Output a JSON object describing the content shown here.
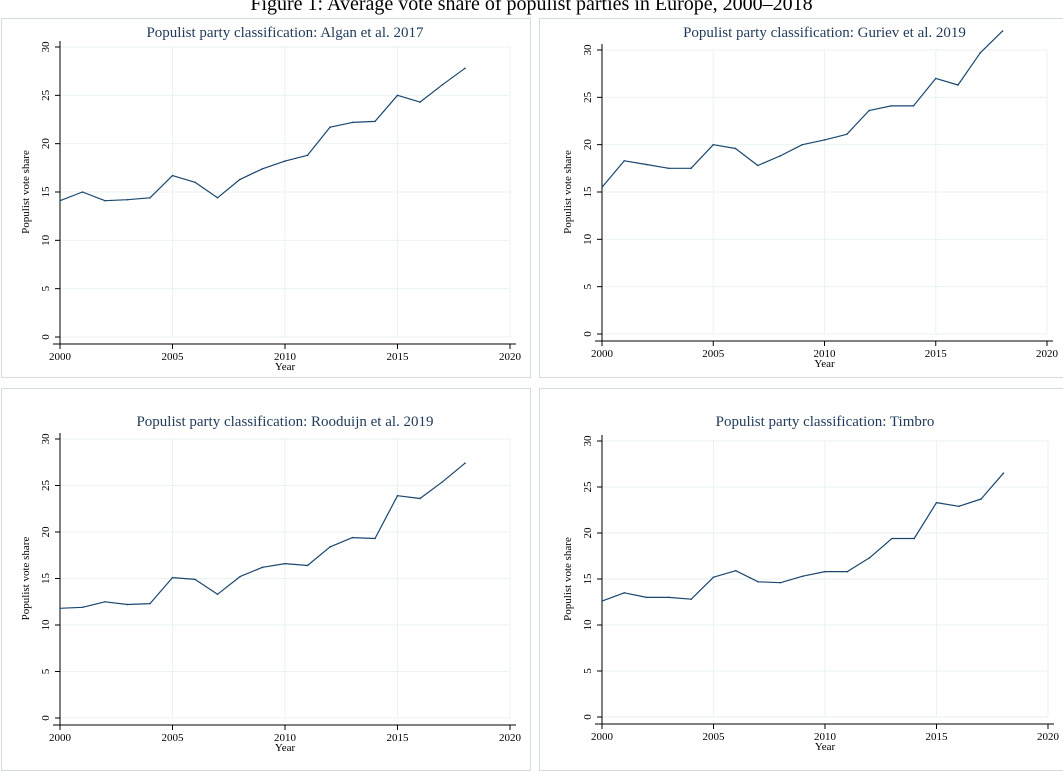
{
  "page_title": "Figure 1: Average vote share of populist parties in Europe, 2000–2018",
  "chart_data": [
    {
      "type": "line",
      "title": "Populist party classification: Algan et al. 2017",
      "xlabel": "Year",
      "ylabel": "Populist vote share",
      "xlim": [
        2000,
        2020
      ],
      "ylim": [
        0,
        30
      ],
      "xticks": [
        "2000",
        "2005",
        "2010",
        "2015",
        "2020"
      ],
      "yticks": [
        "0",
        "5",
        "10",
        "15",
        "20",
        "25",
        "30"
      ],
      "grid": true,
      "x": [
        2000,
        2001,
        2002,
        2003,
        2004,
        2005,
        2006,
        2007,
        2008,
        2009,
        2010,
        2011,
        2012,
        2013,
        2014,
        2015,
        2016,
        2017,
        2018
      ],
      "series": [
        {
          "values": [
            14.1,
            15.0,
            14.1,
            14.2,
            14.4,
            16.7,
            16.0,
            14.4,
            16.3,
            17.4,
            18.2,
            18.8,
            21.7,
            22.2,
            22.3,
            25.0,
            24.3,
            26.1,
            27.8
          ]
        }
      ],
      "line_color": "#1a476f"
    },
    {
      "type": "line",
      "title": "Populist party classification: Guriev et al. 2019",
      "xlabel": "Year",
      "ylabel": "Populist vote share",
      "xlim": [
        2000,
        2020
      ],
      "ylim": [
        0,
        30
      ],
      "xticks": [
        "2000",
        "2005",
        "2010",
        "2015",
        "2020"
      ],
      "yticks": [
        "0",
        "5",
        "10",
        "15",
        "20",
        "25",
        "30"
      ],
      "grid": true,
      "x": [
        2000,
        2001,
        2002,
        2003,
        2004,
        2005,
        2006,
        2007,
        2008,
        2009,
        2010,
        2011,
        2012,
        2013,
        2014,
        2015,
        2016,
        2017,
        2018
      ],
      "series": [
        {
          "values": [
            15.5,
            18.3,
            17.9,
            17.5,
            17.5,
            20.0,
            19.6,
            17.8,
            18.8,
            20.0,
            20.5,
            21.1,
            23.6,
            24.1,
            24.1,
            27.0,
            26.3,
            29.7,
            32.0
          ]
        }
      ],
      "line_color": "#1a476f"
    },
    {
      "type": "line",
      "title": "Populist party classification: Rooduijn et al. 2019",
      "xlabel": "Year",
      "ylabel": "Populist vote share",
      "xlim": [
        2000,
        2020
      ],
      "ylim": [
        0,
        30
      ],
      "xticks": [
        "2000",
        "2005",
        "2010",
        "2015",
        "2020"
      ],
      "yticks": [
        "0",
        "5",
        "10",
        "15",
        "20",
        "25",
        "30"
      ],
      "grid": true,
      "x": [
        2000,
        2001,
        2002,
        2003,
        2004,
        2005,
        2006,
        2007,
        2008,
        2009,
        2010,
        2011,
        2012,
        2013,
        2014,
        2015,
        2016,
        2017,
        2018
      ],
      "series": [
        {
          "values": [
            11.8,
            11.9,
            12.5,
            12.2,
            12.3,
            15.1,
            14.9,
            13.3,
            15.2,
            16.2,
            16.6,
            16.4,
            18.4,
            19.4,
            19.3,
            23.9,
            23.6,
            25.4,
            27.4
          ]
        }
      ],
      "line_color": "#1a476f"
    },
    {
      "type": "line",
      "title": "Populist party classification: Timbro",
      "xlabel": "Year",
      "ylabel": "Populist vote share",
      "xlim": [
        2000,
        2020
      ],
      "ylim": [
        0,
        30
      ],
      "xticks": [
        "2000",
        "2005",
        "2010",
        "2015",
        "2020"
      ],
      "yticks": [
        "0",
        "5",
        "10",
        "15",
        "20",
        "25",
        "30"
      ],
      "grid": true,
      "x": [
        2000,
        2001,
        2002,
        2003,
        2004,
        2005,
        2006,
        2007,
        2008,
        2009,
        2010,
        2011,
        2012,
        2013,
        2014,
        2015,
        2016,
        2017,
        2018
      ],
      "series": [
        {
          "values": [
            12.6,
            13.5,
            13.0,
            13.0,
            12.8,
            15.2,
            15.9,
            14.7,
            14.6,
            15.3,
            15.8,
            15.8,
            17.3,
            19.4,
            19.4,
            23.3,
            22.9,
            23.7,
            26.5
          ]
        }
      ],
      "line_color": "#1a476f"
    }
  ]
}
